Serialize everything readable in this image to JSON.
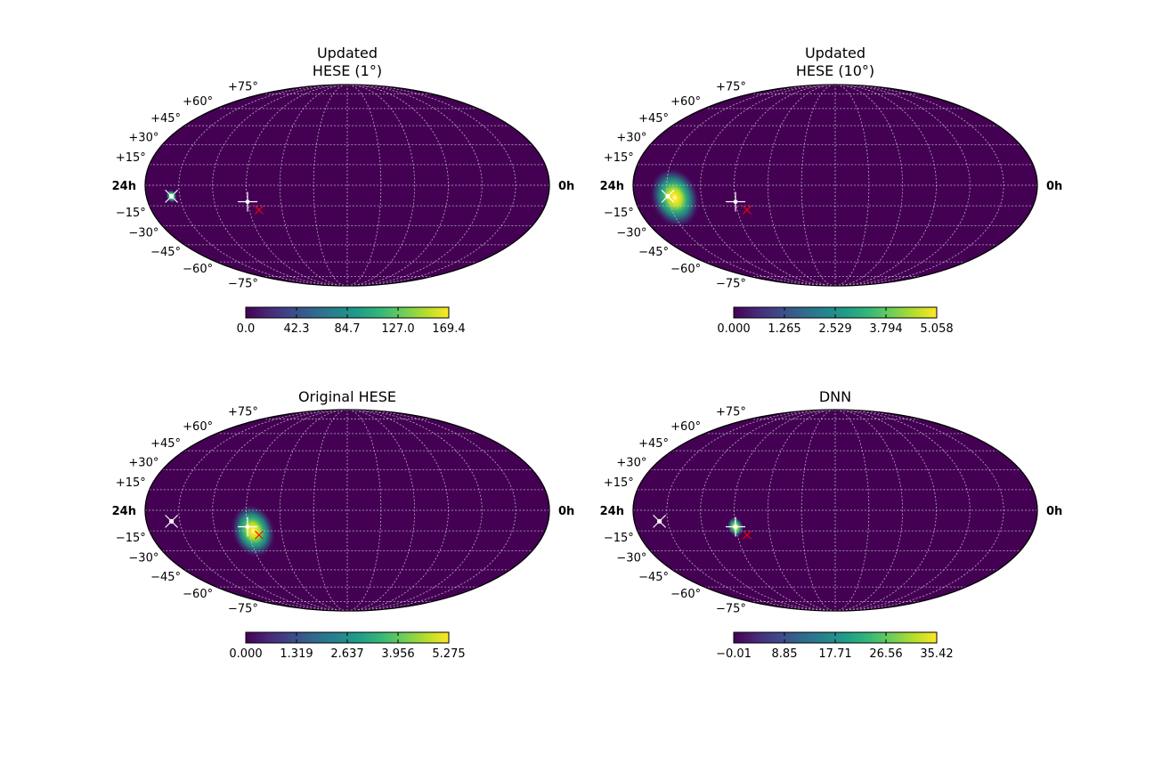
{
  "chart_data": [
    {
      "type": "heatmap",
      "projection": "mollweide",
      "title_lines": [
        "Updated",
        "HESE (1°)"
      ],
      "lat_labels": [
        "+75°",
        "+60°",
        "+45°",
        "+30°",
        "+15°",
        "−15°",
        "−30°",
        "−45°",
        "−60°",
        "−75°"
      ],
      "ra_left_label": "24h",
      "ra_right_label": "0h",
      "colorbar": {
        "min": 0.0,
        "max": 169.4,
        "ticks": [
          "0.0",
          "42.3",
          "84.7",
          "127.0",
          "169.4"
        ]
      },
      "hotspots": [
        {
          "ra_h": 22.5,
          "dec": -8,
          "sigma_deg": 2,
          "peak": 1.0
        }
      ],
      "markers": [
        {
          "kind": "white-x-dot",
          "ra_h": 22.5,
          "dec": -8
        },
        {
          "kind": "white-plus-dot",
          "ra_h": 18.0,
          "dec": -12
        },
        {
          "kind": "red-x",
          "ra_h": 17.4,
          "dec": -18
        }
      ],
      "grid": true
    },
    {
      "type": "heatmap",
      "projection": "mollweide",
      "title_lines": [
        "Updated",
        "HESE (10°)"
      ],
      "lat_labels": [
        "+75°",
        "+60°",
        "+45°",
        "+30°",
        "+15°",
        "−15°",
        "−30°",
        "−45°",
        "−60°",
        "−75°"
      ],
      "ra_left_label": "24h",
      "ra_right_label": "0h",
      "colorbar": {
        "min": 0.0,
        "max": 5.058,
        "ticks": [
          "0.000",
          "1.265",
          "2.529",
          "3.794",
          "5.058"
        ]
      },
      "hotspots": [
        {
          "ra_h": 21.6,
          "dec": -9,
          "sigma_deg": 9,
          "peak": 1.0
        }
      ],
      "markers": [
        {
          "kind": "white-x-dot",
          "ra_h": 22.0,
          "dec": -8
        },
        {
          "kind": "white-plus-dot",
          "ra_h": 18.0,
          "dec": -12
        },
        {
          "kind": "red-x",
          "ra_h": 17.4,
          "dec": -18
        }
      ],
      "grid": true
    },
    {
      "type": "heatmap",
      "projection": "mollweide",
      "title_lines": [
        "Original HESE"
      ],
      "lat_labels": [
        "+75°",
        "+60°",
        "+45°",
        "+30°",
        "+15°",
        "−15°",
        "−30°",
        "−45°",
        "−60°",
        "−75°"
      ],
      "ra_left_label": "24h",
      "ra_right_label": "0h",
      "colorbar": {
        "min": 0.0,
        "max": 5.275,
        "ticks": [
          "0.000",
          "1.319",
          "2.637",
          "3.956",
          "5.275"
        ]
      },
      "hotspots": [
        {
          "ra_h": 17.7,
          "dec": -15,
          "sigma_deg": 8,
          "peak": 1.0
        }
      ],
      "markers": [
        {
          "kind": "white-x-dot",
          "ra_h": 22.5,
          "dec": -8
        },
        {
          "kind": "white-plus-dot",
          "ra_h": 18.0,
          "dec": -12
        },
        {
          "kind": "red-x",
          "ra_h": 17.4,
          "dec": -18
        }
      ],
      "grid": true
    },
    {
      "type": "heatmap",
      "projection": "mollweide",
      "title_lines": [
        "DNN"
      ],
      "lat_labels": [
        "+75°",
        "+60°",
        "+45°",
        "+30°",
        "+15°",
        "−15°",
        "−30°",
        "−45°",
        "−60°",
        "−75°"
      ],
      "ra_left_label": "24h",
      "ra_right_label": "0h",
      "colorbar": {
        "min": -0.01,
        "max": 35.42,
        "ticks": [
          "−0.01",
          "8.85",
          "17.71",
          "26.56",
          "35.42"
        ]
      },
      "hotspots": [
        {
          "ra_h": 18.0,
          "dec": -12,
          "sigma_deg": 3,
          "peak": 1.0
        }
      ],
      "markers": [
        {
          "kind": "white-x-dot",
          "ra_h": 22.5,
          "dec": -8
        },
        {
          "kind": "white-plus-dot",
          "ra_h": 18.0,
          "dec": -12
        },
        {
          "kind": "red-x",
          "ra_h": 17.4,
          "dec": -18
        }
      ],
      "grid": true
    }
  ],
  "colors": {
    "background": "#440154",
    "grid": "#d9d9d9",
    "marker_white": "#ffffff",
    "marker_red": "#ff0000",
    "viridis": [
      "#440154",
      "#482878",
      "#3e4989",
      "#31688e",
      "#26828e",
      "#1f9e89",
      "#35b779",
      "#6ece58",
      "#b5de2b",
      "#fde725"
    ]
  }
}
